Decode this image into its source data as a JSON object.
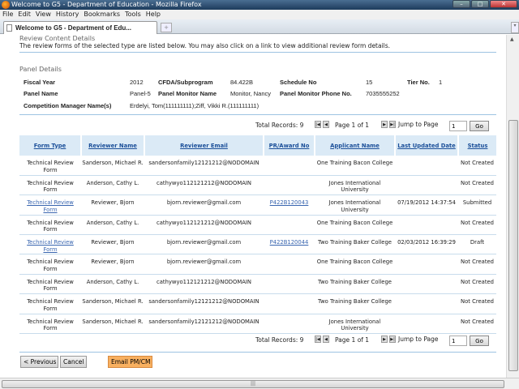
{
  "window": {
    "title": "Welcome to G5 - Department of Education - Mozilla Firefox"
  },
  "menu": [
    "File",
    "Edit",
    "View",
    "History",
    "Bookmarks",
    "Tools",
    "Help"
  ],
  "tab": {
    "label": "Welcome to G5 - Department of Edu...",
    "new_tab": "+"
  },
  "section": {
    "title": "Review Content Details",
    "description": "The review forms of the selected type are listed below. You may also click on a link to view additional review form details."
  },
  "panel": {
    "title": "Panel Details",
    "fiscal_year_label": "Fiscal Year",
    "fiscal_year": "2012",
    "cfda_label": "CFDA/Subprogram",
    "cfda": "84.422B",
    "schedule_label": "Schedule No",
    "schedule": "15",
    "tier_label": "Tier No.",
    "tier": "1",
    "panel_name_label": "Panel Name",
    "panel_name": "Panel-5",
    "monitor_label": "Panel Monitor Name",
    "monitor": "Monitor, Nancy",
    "phone_label": "Panel Monitor Phone No.",
    "phone": "7035555252",
    "cm_label": "Competition Manager Name(s)",
    "cm": "Erdelyi, Tom(111111111);Ziff, Vikki R.(111111111)"
  },
  "pager": {
    "total": "Total Records: 9",
    "page": "Page 1 of 1",
    "jump_label": "Jump to Page",
    "jump_value": "1",
    "go": "Go"
  },
  "table": {
    "headers": [
      "Form Type",
      "Reviewer Name",
      "Reviewer Email",
      "PR/Award No",
      "Applicant Name",
      "Last Updated Date",
      "Status"
    ],
    "rows": [
      {
        "form": "Technical Review Form",
        "link": false,
        "reviewer": "Sanderson, Michael R.",
        "email": "sandersonfamily12121212@NODOMAIN",
        "pr": "",
        "applicant": "One Training Bacon College",
        "date": "",
        "status": "Not Created"
      },
      {
        "form": "Technical Review Form",
        "link": false,
        "reviewer": "Anderson, Cathy L.",
        "email": "cathywyo112121212@NODOMAIN",
        "pr": "",
        "applicant": "Jones International University",
        "date": "",
        "status": "Not Created"
      },
      {
        "form": "Technical Review Form",
        "link": true,
        "reviewer": "Reviewer, Bjorn",
        "email": "bjorn.reviewer@gmail.com",
        "pr": "P422B120043",
        "applicant": "Jones International University",
        "date": "07/19/2012 14:37:54",
        "status": "Submitted"
      },
      {
        "form": "Technical Review Form",
        "link": false,
        "reviewer": "Anderson, Cathy L.",
        "email": "cathywyo112121212@NODOMAIN",
        "pr": "",
        "applicant": "One Training Bacon College",
        "date": "",
        "status": "Not Created"
      },
      {
        "form": "Technical Review Form",
        "link": true,
        "reviewer": "Reviewer, Bjorn",
        "email": "bjorn.reviewer@gmail.com",
        "pr": "P422B120044",
        "applicant": "Two Training Baker College",
        "date": "02/03/2012 16:39:29",
        "status": "Draft"
      },
      {
        "form": "Technical Review Form",
        "link": false,
        "reviewer": "Reviewer, Bjorn",
        "email": "bjorn.reviewer@gmail.com",
        "pr": "",
        "applicant": "One Training Bacon College",
        "date": "",
        "status": "Not Created"
      },
      {
        "form": "Technical Review Form",
        "link": false,
        "reviewer": "Anderson, Cathy L.",
        "email": "cathywyo112121212@NODOMAIN",
        "pr": "",
        "applicant": "Two Training Baker College",
        "date": "",
        "status": "Not Created"
      },
      {
        "form": "Technical Review Form",
        "link": false,
        "reviewer": "Sanderson, Michael R.",
        "email": "sandersonfamily12121212@NODOMAIN",
        "pr": "",
        "applicant": "Two Training Baker College",
        "date": "",
        "status": "Not Created"
      },
      {
        "form": "Technical Review Form",
        "link": false,
        "reviewer": "Sanderson, Michael R.",
        "email": "sandersonfamily12121212@NODOMAIN",
        "pr": "",
        "applicant": "Jones International University",
        "date": "",
        "status": "Not Created"
      }
    ]
  },
  "buttons": {
    "previous": "< Previous",
    "cancel": "Cancel",
    "email": "Email PM/CM"
  },
  "colors": {
    "header_bg": "#dbeaf6",
    "link": "#3a66b0",
    "email_button": "#f8b060"
  }
}
